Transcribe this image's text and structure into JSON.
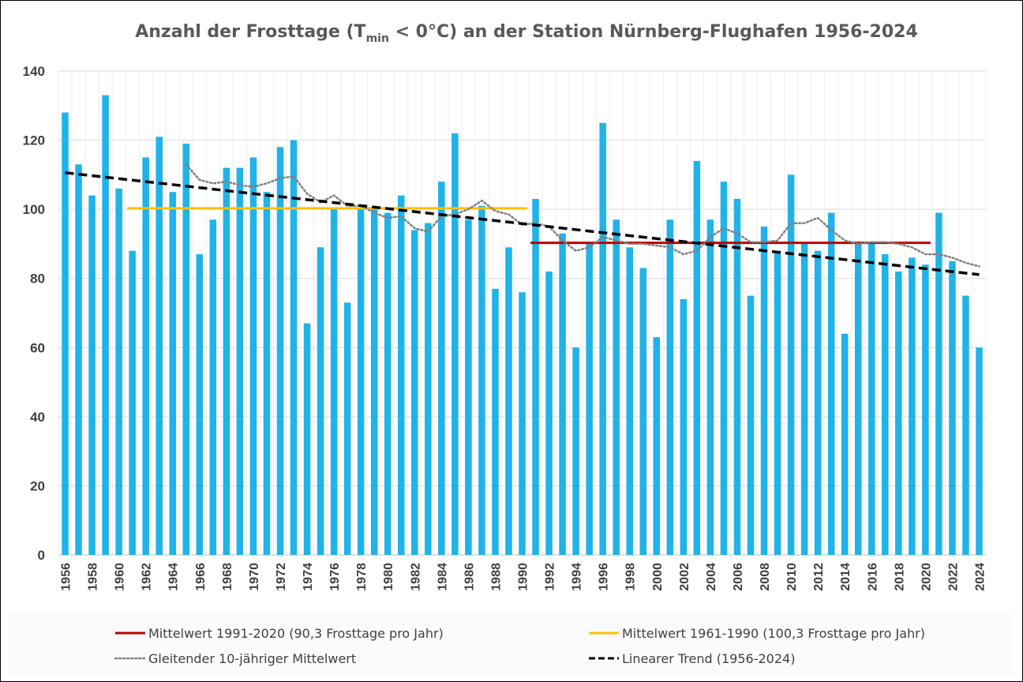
{
  "chart_data": {
    "type": "bar",
    "title": "Anzahl der Frosttage (T",
    "title_subscript": "min",
    "title_suffix": " < 0°C) an der Station Nürnberg-Flughafen 1956-2024",
    "xlabel": "",
    "ylabel": "",
    "ylim": [
      0,
      140
    ],
    "yticks": [
      "0",
      "20",
      "40",
      "60",
      "80",
      "100",
      "120",
      "140"
    ],
    "grid": true,
    "bar_color": "#1FB3E8",
    "years": [
      1956,
      1957,
      1958,
      1959,
      1960,
      1961,
      1962,
      1963,
      1964,
      1965,
      1966,
      1967,
      1968,
      1969,
      1970,
      1971,
      1972,
      1973,
      1974,
      1975,
      1976,
      1977,
      1978,
      1979,
      1980,
      1981,
      1982,
      1983,
      1984,
      1985,
      1986,
      1987,
      1988,
      1989,
      1990,
      1991,
      1992,
      1993,
      1994,
      1995,
      1996,
      1997,
      1998,
      1999,
      2000,
      2001,
      2002,
      2003,
      2004,
      2005,
      2006,
      2007,
      2008,
      2009,
      2010,
      2011,
      2012,
      2013,
      2014,
      2015,
      2016,
      2017,
      2018,
      2019,
      2020,
      2021,
      2022,
      2023,
      2024
    ],
    "values": [
      128,
      113,
      104,
      133,
      106,
      88,
      115,
      121,
      105,
      119,
      87,
      97,
      112,
      112,
      115,
      105,
      118,
      120,
      67,
      89,
      100,
      73,
      100,
      100,
      99,
      104,
      94,
      96,
      108,
      122,
      97,
      101,
      77,
      89,
      76,
      103,
      82,
      93,
      60,
      90,
      125,
      97,
      89,
      83,
      63,
      97,
      74,
      114,
      97,
      108,
      103,
      75,
      95,
      88,
      110,
      90,
      88,
      99,
      64,
      90,
      90,
      87,
      82,
      86,
      84,
      99,
      85,
      75,
      60
    ],
    "xtick_labels": [
      "1956",
      "1958",
      "1960",
      "1962",
      "1964",
      "1966",
      "1968",
      "1970",
      "1972",
      "1974",
      "1976",
      "1978",
      "1980",
      "1982",
      "1984",
      "1986",
      "1988",
      "1990",
      "1992",
      "1994",
      "1996",
      "1998",
      "2000",
      "2002",
      "2004",
      "2006",
      "2008",
      "2010",
      "2012",
      "2014",
      "2016",
      "2018",
      "2020",
      "2022",
      "2024"
    ],
    "mean_1991_2020": {
      "value": 90.3,
      "from": 1991,
      "to": 2020,
      "color": "#C00000"
    },
    "mean_1961_1990": {
      "value": 100.3,
      "from": 1961,
      "to": 1990,
      "color": "#FFC000"
    },
    "trend": {
      "start_year": 1956,
      "end_year": 2024,
      "start_value": 110.6,
      "end_value": 81.1,
      "color": "#000000"
    },
    "moving_average": {
      "color": "#808080",
      "years": [
        1965,
        1966,
        1967,
        1968,
        1969,
        1970,
        1971,
        1972,
        1973,
        1974,
        1975,
        1976,
        1977,
        1978,
        1979,
        1980,
        1981,
        1982,
        1983,
        1984,
        1985,
        1986,
        1987,
        1988,
        1989,
        1990,
        1991,
        1992,
        1993,
        1994,
        1995,
        1996,
        1997,
        1998,
        1999,
        2000,
        2001,
        2002,
        2003,
        2004,
        2005,
        2006,
        2007,
        2008,
        2009,
        2010,
        2011,
        2012,
        2013,
        2014,
        2015,
        2016,
        2017,
        2018,
        2019,
        2020,
        2021,
        2022,
        2023,
        2024
      ],
      "values": [
        113,
        108.5,
        107.5,
        108,
        107,
        106.5,
        107.5,
        109,
        109.5,
        104.5,
        102,
        104,
        101,
        101,
        99,
        97.5,
        98,
        94.5,
        93.5,
        98,
        98.5,
        100,
        102.5,
        99.5,
        98.5,
        95.5,
        96,
        95,
        91,
        88,
        89,
        92,
        91,
        90,
        90,
        89.5,
        89,
        87,
        88,
        92,
        94.5,
        93,
        90.5,
        90.5,
        91,
        96,
        96,
        97.5,
        94,
        91,
        90,
        90.5,
        90.5,
        90,
        89,
        87,
        87,
        86,
        84.5,
        83.5
      ]
    },
    "legend": {
      "placement": "bottom",
      "entries": [
        {
          "label": "Mittelwert 1991-2020 (90,3 Frosttage pro Jahr)",
          "style": "solid",
          "color": "#C00000"
        },
        {
          "label": "Mittelwert 1961-1990 (100,3 Frosttage pro Jahr)",
          "style": "solid",
          "color": "#FFC000"
        },
        {
          "label": "Gleitender 10-jähriger Mittelwert",
          "style": "dotted",
          "color": "#808080"
        },
        {
          "label": "Linearer Trend (1956-2024)",
          "style": "dashed",
          "color": "#000000"
        }
      ]
    }
  }
}
